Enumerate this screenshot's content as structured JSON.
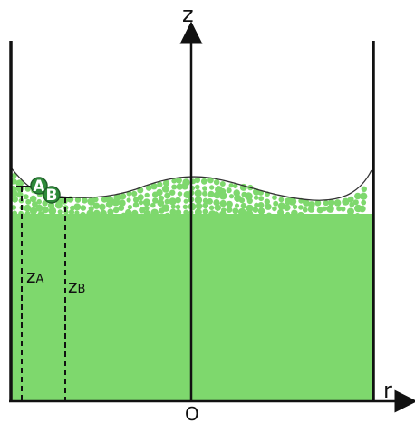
{
  "axes": {
    "vertical_label": "z",
    "horizontal_label": "r",
    "origin_label": "O"
  },
  "points": [
    {
      "label": "A"
    },
    {
      "label": "B"
    }
  ],
  "heights": [
    {
      "main": "z",
      "sub": "A"
    },
    {
      "main": "z",
      "sub": "B"
    }
  ],
  "colors": {
    "liquid": "#7ed86d",
    "bubble": "#7ed86d",
    "marker": "#2e8b3a",
    "marker_stroke": "#1f5e28",
    "wall": "#111111"
  }
}
